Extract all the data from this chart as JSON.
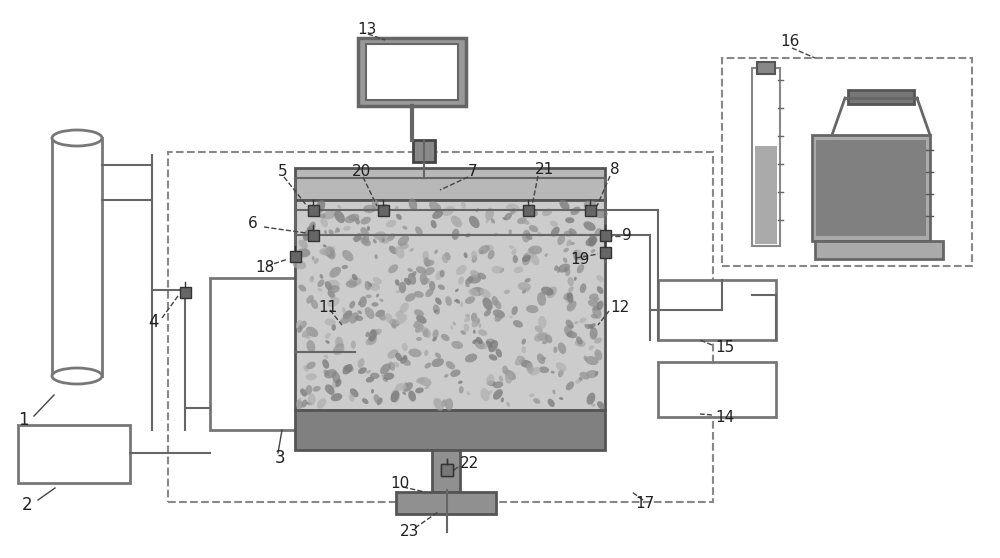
{
  "bg_color": "#ffffff",
  "figsize": [
    10.0,
    5.58
  ],
  "dpi": 100
}
